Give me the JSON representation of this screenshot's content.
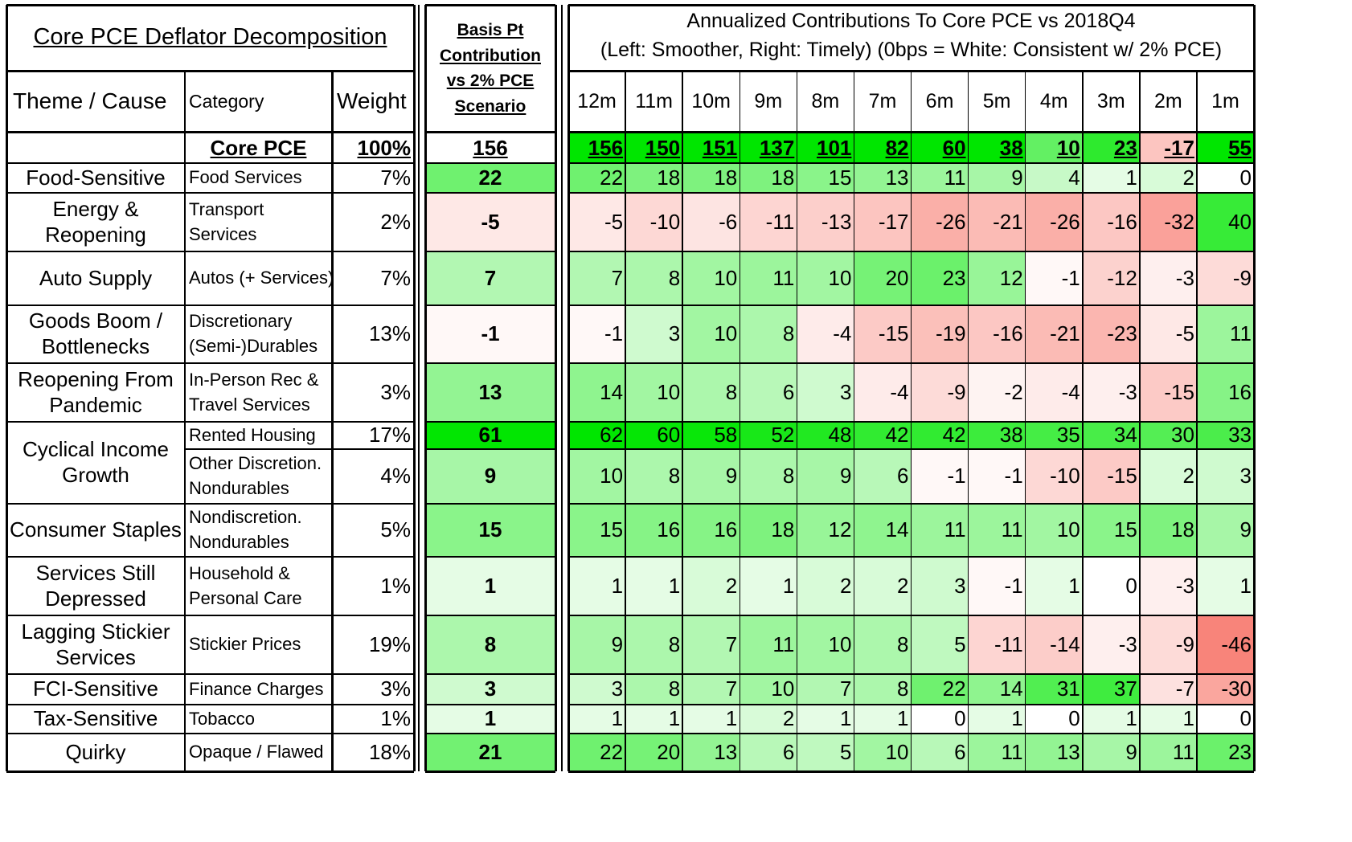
{
  "left_panel": {
    "title": "Core PCE Deflator Decomposition",
    "headers": {
      "theme": "Theme / Cause",
      "category": "Category",
      "weight": "Weight"
    },
    "total_row": {
      "theme": "",
      "category": "Core PCE",
      "weight": "100%"
    }
  },
  "contribution_panel": {
    "header_lines": [
      "Basis Pt",
      "Contribution",
      "vs 2% PCE",
      "Scenario"
    ]
  },
  "right_panel": {
    "title_line1": "Annualized Contributions To Core PCE vs 2018Q4",
    "title_line2": "(Left: Smoother, Right: Timely) (0bps = White: Consistent w/ 2% PCE)"
  },
  "chart_data": {
    "type": "heatmap",
    "title": "Annualized Contributions To Core PCE vs 2018Q4",
    "subtitle": "(Left: Smoother, Right: Timely) (0bps = White: Consistent w/ 2% PCE)",
    "color_scale": {
      "negative": "#f8847a",
      "zero": "#ffffff",
      "positive": "#00e600"
    },
    "columns": [
      "12m",
      "11m",
      "10m",
      "9m",
      "8m",
      "7m",
      "6m",
      "5m",
      "4m",
      "3m",
      "2m",
      "1m"
    ],
    "total": {
      "category": "Core PCE",
      "weight": "100%",
      "contribution": 156,
      "values": [
        156,
        150,
        151,
        137,
        101,
        82,
        60,
        38,
        10,
        23,
        -17,
        55
      ]
    },
    "rows": [
      {
        "theme": [
          "Food-Sensitive"
        ],
        "category": [
          "Food Services"
        ],
        "weight": "7%",
        "contribution": 22,
        "values": [
          22,
          18,
          18,
          18,
          15,
          13,
          11,
          9,
          4,
          1,
          2,
          0
        ]
      },
      {
        "theme": [
          "Energy &",
          "Reopening"
        ],
        "category": [
          "Transport",
          "Services"
        ],
        "weight": "2%",
        "contribution": -5,
        "values": [
          -5,
          -10,
          -6,
          -11,
          -13,
          -17,
          -26,
          -21,
          -26,
          -16,
          -32,
          40
        ]
      },
      {
        "theme": [
          "Auto Supply"
        ],
        "category": [
          "Autos (+ Services)"
        ],
        "weight": "7%",
        "contribution": 7,
        "values": [
          7,
          8,
          10,
          11,
          10,
          20,
          23,
          12,
          -1,
          -12,
          -3,
          -9
        ]
      },
      {
        "theme": [
          "Goods Boom /",
          "Bottlenecks"
        ],
        "category": [
          "Discretionary",
          "(Semi-)Durables"
        ],
        "weight": "13%",
        "contribution": -1,
        "values": [
          -1,
          3,
          10,
          8,
          -4,
          -15,
          -19,
          -16,
          -21,
          -23,
          -5,
          11
        ]
      },
      {
        "theme": [
          "Reopening From",
          "Pandemic"
        ],
        "category": [
          "In-Person Rec &",
          "Travel Services"
        ],
        "weight": "3%",
        "contribution": 13,
        "values": [
          14,
          10,
          8,
          6,
          3,
          -4,
          -9,
          -2,
          -4,
          -3,
          -15,
          16
        ]
      },
      {
        "theme": [
          "Cyclical Income",
          "Growth"
        ],
        "category": [
          "Rented Housing"
        ],
        "weight": "17%",
        "contribution": 61,
        "values": [
          62,
          60,
          58,
          52,
          48,
          42,
          42,
          38,
          35,
          34,
          30,
          33
        ]
      },
      {
        "theme": [],
        "category": [
          "Other Discretion.",
          "Nondurables"
        ],
        "weight": "4%",
        "contribution": 9,
        "values": [
          10,
          8,
          9,
          8,
          9,
          6,
          -1,
          -1,
          -10,
          -15,
          2,
          3
        ]
      },
      {
        "theme": [
          "Consumer Staples"
        ],
        "category": [
          "Nondiscretion.",
          "Nondurables"
        ],
        "weight": "5%",
        "contribution": 15,
        "values": [
          15,
          16,
          16,
          18,
          12,
          14,
          11,
          11,
          10,
          15,
          18,
          9
        ]
      },
      {
        "theme": [
          "Services Still",
          "Depressed"
        ],
        "category": [
          "Household &",
          "Personal Care"
        ],
        "weight": "1%",
        "contribution": 1,
        "values": [
          1,
          1,
          2,
          1,
          2,
          2,
          3,
          -1,
          1,
          0,
          -3,
          1
        ]
      },
      {
        "theme": [
          "Lagging Stickier",
          "Services"
        ],
        "category": [
          "Stickier Prices"
        ],
        "weight": "19%",
        "contribution": 8,
        "values": [
          9,
          8,
          7,
          11,
          10,
          8,
          5,
          -11,
          -14,
          -3,
          -9,
          -46
        ]
      },
      {
        "theme": [
          "FCI-Sensitive"
        ],
        "category": [
          "Finance Charges"
        ],
        "weight": "3%",
        "contribution": 3,
        "values": [
          3,
          8,
          7,
          10,
          7,
          8,
          22,
          14,
          31,
          37,
          -7,
          -30
        ]
      },
      {
        "theme": [
          "Tax-Sensitive"
        ],
        "category": [
          "Tobacco"
        ],
        "weight": "1%",
        "contribution": 1,
        "values": [
          1,
          1,
          1,
          2,
          1,
          1,
          0,
          1,
          0,
          1,
          1,
          0
        ]
      },
      {
        "theme": [
          "Quirky"
        ],
        "category": [
          "Opaque / Flawed"
        ],
        "weight": "18%",
        "contribution": 21,
        "values": [
          22,
          20,
          13,
          6,
          5,
          10,
          6,
          11,
          13,
          9,
          11,
          23
        ]
      }
    ]
  }
}
